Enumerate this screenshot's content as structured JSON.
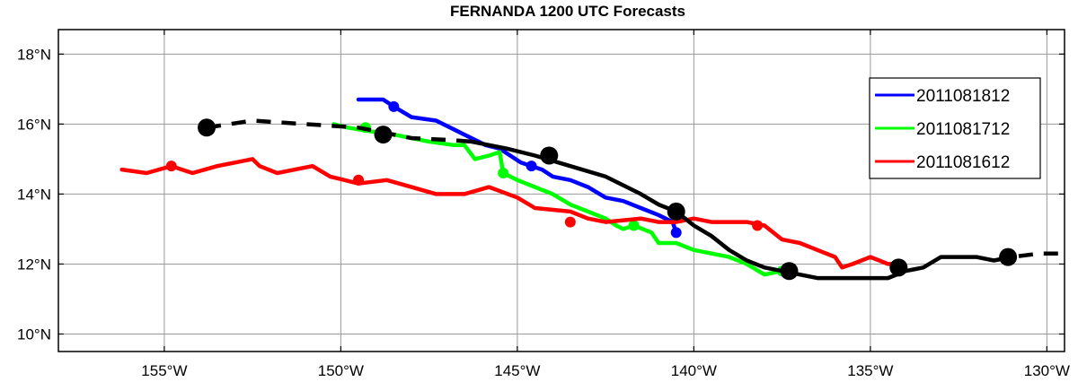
{
  "chart_data": {
    "type": "line",
    "title": "FERNANDA 1200 UTC Forecasts",
    "xlabel": "",
    "ylabel": "",
    "xlim": [
      -158,
      -129.5
    ],
    "ylim": [
      9.5,
      18.7
    ],
    "grid": true,
    "legend_position": "right",
    "x_ticks": [
      {
        "value": -155,
        "label": "155°W"
      },
      {
        "value": -150,
        "label": "150°W"
      },
      {
        "value": -145,
        "label": "145°W"
      },
      {
        "value": -140,
        "label": "140°W"
      },
      {
        "value": -135,
        "label": "135°W"
      },
      {
        "value": -130,
        "label": "130°W"
      }
    ],
    "y_ticks": [
      {
        "value": 10,
        "label": "10°N"
      },
      {
        "value": 12,
        "label": "12°N"
      },
      {
        "value": 14,
        "label": "14°N"
      },
      {
        "value": 16,
        "label": "16°N"
      },
      {
        "value": 18,
        "label": "18°N"
      }
    ],
    "series": [
      {
        "name": "2011081812",
        "color": "#0000ff",
        "points": [
          [
            -149.5,
            16.7
          ],
          [
            -148.8,
            16.7
          ],
          [
            -148.5,
            16.5
          ],
          [
            -148,
            16.2
          ],
          [
            -147.3,
            16.1
          ],
          [
            -146.5,
            15.7
          ],
          [
            -145.9,
            15.4
          ],
          [
            -145.5,
            15.3
          ],
          [
            -145.2,
            15.1
          ],
          [
            -144.9,
            14.9
          ],
          [
            -144.6,
            14.8
          ],
          [
            -144.3,
            14.7
          ],
          [
            -144,
            14.5
          ],
          [
            -143.5,
            14.4
          ],
          [
            -143,
            14.2
          ],
          [
            -142.5,
            13.9
          ],
          [
            -142,
            13.8
          ],
          [
            -141.5,
            13.6
          ],
          [
            -141,
            13.4
          ],
          [
            -140.6,
            13.2
          ],
          [
            -140.5,
            12.9
          ]
        ],
        "markers": [
          [
            -148.5,
            16.5
          ],
          [
            -144.6,
            14.8
          ],
          [
            -140.5,
            12.9
          ]
        ]
      },
      {
        "name": "2011081712",
        "color": "#00ff00",
        "points": [
          [
            -150.2,
            16
          ],
          [
            -149.8,
            15.9
          ],
          [
            -149.2,
            15.8
          ],
          [
            -148.5,
            15.7
          ],
          [
            -147.5,
            15.5
          ],
          [
            -146.8,
            15.4
          ],
          [
            -146.5,
            15.4
          ],
          [
            -146.2,
            15
          ],
          [
            -145.8,
            15.1
          ],
          [
            -145.5,
            15.2
          ],
          [
            -145.4,
            14.6
          ],
          [
            -145,
            14.4
          ],
          [
            -144.5,
            14.2
          ],
          [
            -144,
            14
          ],
          [
            -143.5,
            13.7
          ],
          [
            -143,
            13.5
          ],
          [
            -142.5,
            13.3
          ],
          [
            -142.2,
            13.1
          ],
          [
            -142,
            13
          ],
          [
            -141.7,
            13.1
          ],
          [
            -141.2,
            12.9
          ],
          [
            -141,
            12.6
          ],
          [
            -140.5,
            12.6
          ],
          [
            -140,
            12.4
          ],
          [
            -139,
            12.2
          ],
          [
            -138.5,
            12
          ],
          [
            -138,
            11.7
          ],
          [
            -137.5,
            11.8
          ],
          [
            -137.3,
            11.8
          ]
        ],
        "markers": [
          [
            -149.3,
            15.9
          ],
          [
            -145.4,
            14.6
          ],
          [
            -141.7,
            13.1
          ],
          [
            -137.5,
            11.8
          ]
        ]
      },
      {
        "name": "2011081612",
        "color": "#ff0000",
        "points": [
          [
            -156.2,
            14.7
          ],
          [
            -155.5,
            14.6
          ],
          [
            -154.8,
            14.8
          ],
          [
            -154.2,
            14.6
          ],
          [
            -153.5,
            14.8
          ],
          [
            -153,
            14.9
          ],
          [
            -152.5,
            15
          ],
          [
            -152.3,
            14.8
          ],
          [
            -151.8,
            14.6
          ],
          [
            -151.3,
            14.7
          ],
          [
            -150.8,
            14.8
          ],
          [
            -150.3,
            14.5
          ],
          [
            -149.5,
            14.3
          ],
          [
            -148.7,
            14.4
          ],
          [
            -148,
            14.2
          ],
          [
            -147.3,
            14
          ],
          [
            -146.5,
            14
          ],
          [
            -145.8,
            14.2
          ],
          [
            -145,
            13.9
          ],
          [
            -144.5,
            13.6
          ],
          [
            -143.5,
            13.5
          ],
          [
            -143,
            13.3
          ],
          [
            -142.5,
            13.2
          ],
          [
            -141.5,
            13.3
          ],
          [
            -141,
            13.2
          ],
          [
            -140.5,
            13.2
          ],
          [
            -140,
            13.3
          ],
          [
            -139.5,
            13.2
          ],
          [
            -139,
            13.2
          ],
          [
            -138.5,
            13.2
          ],
          [
            -138,
            13.1
          ],
          [
            -137.5,
            12.7
          ],
          [
            -137,
            12.6
          ],
          [
            -136.5,
            12.4
          ],
          [
            -136,
            12.2
          ],
          [
            -135.8,
            11.9
          ],
          [
            -135.5,
            12
          ],
          [
            -135,
            12.2
          ],
          [
            -134.5,
            12
          ],
          [
            -134.2,
            12
          ]
        ],
        "markers": [
          [
            -154.8,
            14.8
          ],
          [
            -149.5,
            14.4
          ],
          [
            -143.5,
            13.2
          ],
          [
            -138.2,
            13.1
          ],
          [
            -134.2,
            12
          ]
        ]
      }
    ],
    "official_forecast": {
      "color": "#000000",
      "solid_points": [
        [
          -146.3,
          15.5
        ],
        [
          -145.8,
          15.4
        ],
        [
          -145.3,
          15.3
        ],
        [
          -144.5,
          15.1
        ],
        [
          -143.5,
          14.8
        ],
        [
          -142.5,
          14.5
        ],
        [
          -141.5,
          14
        ],
        [
          -141,
          13.7
        ],
        [
          -140.5,
          13.5
        ],
        [
          -140,
          13.1
        ],
        [
          -139.5,
          12.8
        ],
        [
          -139,
          12.4
        ],
        [
          -138.5,
          12.1
        ],
        [
          -138,
          11.9
        ],
        [
          -137.5,
          11.8
        ],
        [
          -137,
          11.7
        ],
        [
          -136.5,
          11.6
        ],
        [
          -135.5,
          11.6
        ],
        [
          -134.5,
          11.6
        ],
        [
          -134,
          11.8
        ],
        [
          -133.5,
          11.9
        ],
        [
          -133,
          12.2
        ],
        [
          -132,
          12.2
        ],
        [
          -131.5,
          12.1
        ]
      ],
      "dashed_points": [
        [
          -153.8,
          15.9
        ],
        [
          -152.5,
          16.1
        ],
        [
          -151,
          16
        ],
        [
          -149.5,
          15.9
        ],
        [
          -148,
          15.6
        ],
        [
          -147,
          15.55
        ],
        [
          -146.3,
          15.5
        ]
      ],
      "dashed_tail": [
        [
          -131.5,
          12.1
        ],
        [
          -131,
          12.2
        ],
        [
          -130.2,
          12.3
        ],
        [
          -129.5,
          12.3
        ]
      ],
      "markers": [
        [
          -153.8,
          15.9
        ],
        [
          -148.8,
          15.7
        ],
        [
          -144.1,
          15.1
        ],
        [
          -140.5,
          13.5
        ],
        [
          -137.3,
          11.8
        ],
        [
          -134.2,
          11.9
        ],
        [
          -131.1,
          12.2
        ]
      ]
    }
  }
}
